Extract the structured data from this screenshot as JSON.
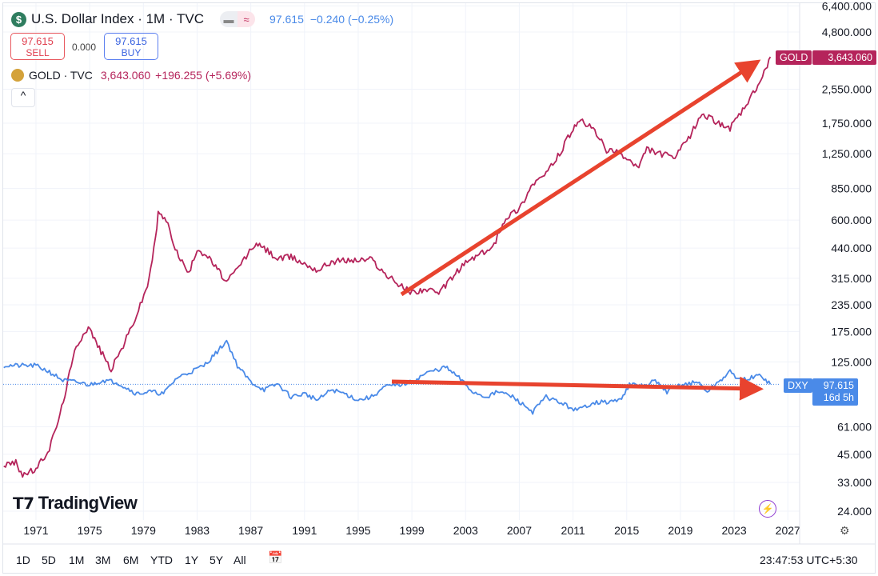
{
  "header": {
    "title": "U.S. Dollar Index · 1M · TVC",
    "price": "97.615",
    "change": "−0.240 (−0.25%)",
    "sell_price": "97.615",
    "sell_label": "SELL",
    "spread": "0.000",
    "buy_price": "97.615",
    "buy_label": "BUY",
    "pill_left": "▬",
    "pill_right": "≈",
    "collapse": "^"
  },
  "gold_legend": {
    "name": "GOLD · TVC",
    "price": "3,643.060",
    "change": "+196.255 (+5.69%)"
  },
  "price_labels": {
    "gold_tag": "GOLD",
    "gold_value": "3,643.060",
    "dxy_tag": "DXY",
    "dxy_value": "97.615",
    "dxy_countdown": "16d 5h"
  },
  "logo": "TradingView",
  "range_buttons": [
    "1D",
    "5D",
    "1M",
    "3M",
    "6M",
    "YTD",
    "1Y",
    "5Y",
    "All"
  ],
  "time": "23:47:53 UTC+5:30",
  "colors": {
    "gold": "#b5245b",
    "dxy": "#4a8ae8",
    "arrow": "#e8432e"
  },
  "chart_data": {
    "type": "line",
    "yscale": "log",
    "yticks": [
      "6,400.000",
      "4,800.000",
      "2,550.000",
      "1,750.000",
      "1,250.000",
      "850.000",
      "600.000",
      "440.000",
      "315.000",
      "235.000",
      "175.000",
      "125.000",
      "61.000",
      "45.000",
      "33.000",
      "24.000"
    ],
    "ytick_values": [
      6400,
      4800,
      2550,
      1750,
      1250,
      850,
      600,
      440,
      315,
      235,
      175,
      125,
      61,
      45,
      33,
      24
    ],
    "xticks": [
      "1971",
      "1975",
      "1979",
      "1983",
      "1987",
      "1991",
      "1995",
      "1999",
      "2003",
      "2007",
      "2011",
      "2015",
      "2019",
      "2023",
      "2027"
    ],
    "series": [
      {
        "name": "GOLD",
        "points": [
          [
            1968.6,
            40
          ],
          [
            1969.5,
            41
          ],
          [
            1970,
            36
          ],
          [
            1971,
            38
          ],
          [
            1972,
            48
          ],
          [
            1972.8,
            70
          ],
          [
            1973.5,
            110
          ],
          [
            1974,
            150
          ],
          [
            1974.9,
            185
          ],
          [
            1975.6,
            150
          ],
          [
            1976.6,
            115
          ],
          [
            1977.5,
            150
          ],
          [
            1978.5,
            210
          ],
          [
            1979.3,
            290
          ],
          [
            1979.9,
            480
          ],
          [
            1980.1,
            650
          ],
          [
            1980.7,
            600
          ],
          [
            1981.5,
            420
          ],
          [
            1982.4,
            330
          ],
          [
            1983,
            440
          ],
          [
            1983.8,
            400
          ],
          [
            1984.5,
            350
          ],
          [
            1985.2,
            300
          ],
          [
            1986,
            350
          ],
          [
            1987.3,
            460
          ],
          [
            1988,
            440
          ],
          [
            1989,
            390
          ],
          [
            1990,
            400
          ],
          [
            1991,
            370
          ],
          [
            1992,
            345
          ],
          [
            1993,
            380
          ],
          [
            1994,
            385
          ],
          [
            1995,
            385
          ],
          [
            1996,
            390
          ],
          [
            1997,
            330
          ],
          [
            1998,
            295
          ],
          [
            1999,
            270
          ],
          [
            2000,
            280
          ],
          [
            2001,
            265
          ],
          [
            2002,
            320
          ],
          [
            2003,
            375
          ],
          [
            2004,
            410
          ],
          [
            2005,
            440
          ],
          [
            2006,
            620
          ],
          [
            2007,
            680
          ],
          [
            2008,
            900
          ],
          [
            2009,
            1000
          ],
          [
            2010,
            1250
          ],
          [
            2011,
            1650
          ],
          [
            2011.7,
            1780
          ],
          [
            2012.5,
            1650
          ],
          [
            2013.5,
            1300
          ],
          [
            2014.5,
            1250
          ],
          [
            2015.9,
            1070
          ],
          [
            2016.5,
            1320
          ],
          [
            2017.5,
            1250
          ],
          [
            2018.6,
            1200
          ],
          [
            2019.6,
            1480
          ],
          [
            2020.6,
            1950
          ],
          [
            2021.5,
            1800
          ],
          [
            2022.7,
            1660
          ],
          [
            2023.5,
            1950
          ],
          [
            2024.3,
            2350
          ],
          [
            2025,
            2800
          ],
          [
            2025.7,
            3643
          ]
        ]
      },
      {
        "name": "DXY",
        "points": [
          [
            1968.6,
            120
          ],
          [
            1971,
            120
          ],
          [
            1972,
            112
          ],
          [
            1973,
            102
          ],
          [
            1974,
            100
          ],
          [
            1975,
            97
          ],
          [
            1976,
            102
          ],
          [
            1977,
            100
          ],
          [
            1978.5,
            88
          ],
          [
            1979.5,
            90
          ],
          [
            1980.5,
            88
          ],
          [
            1981.5,
            105
          ],
          [
            1982.5,
            112
          ],
          [
            1983.5,
            120
          ],
          [
            1984.5,
            140
          ],
          [
            1985.2,
            158
          ],
          [
            1986,
            120
          ],
          [
            1987,
            100
          ],
          [
            1988,
            92
          ],
          [
            1989,
            98
          ],
          [
            1990,
            85
          ],
          [
            1991,
            88
          ],
          [
            1992,
            82
          ],
          [
            1993,
            92
          ],
          [
            1994,
            88
          ],
          [
            1995,
            82
          ],
          [
            1996,
            85
          ],
          [
            1997,
            95
          ],
          [
            1998,
            97
          ],
          [
            1999,
            100
          ],
          [
            2000,
            110
          ],
          [
            2001.5,
            118
          ],
          [
            2002.5,
            105
          ],
          [
            2003.5,
            90
          ],
          [
            2004.5,
            85
          ],
          [
            2005.5,
            90
          ],
          [
            2006.5,
            85
          ],
          [
            2008,
            72
          ],
          [
            2009,
            85
          ],
          [
            2010,
            80
          ],
          [
            2011.3,
            73
          ],
          [
            2012.5,
            80
          ],
          [
            2013.5,
            80
          ],
          [
            2014.5,
            82
          ],
          [
            2015.2,
            97
          ],
          [
            2016.5,
            96
          ],
          [
            2017,
            102
          ],
          [
            2018,
            90
          ],
          [
            2019,
            97
          ],
          [
            2020.3,
            100
          ],
          [
            2021,
            90
          ],
          [
            2022.7,
            112
          ],
          [
            2023.5,
            102
          ],
          [
            2024.3,
            105
          ],
          [
            2025,
            108
          ],
          [
            2025.7,
            97.6
          ]
        ]
      }
    ]
  }
}
